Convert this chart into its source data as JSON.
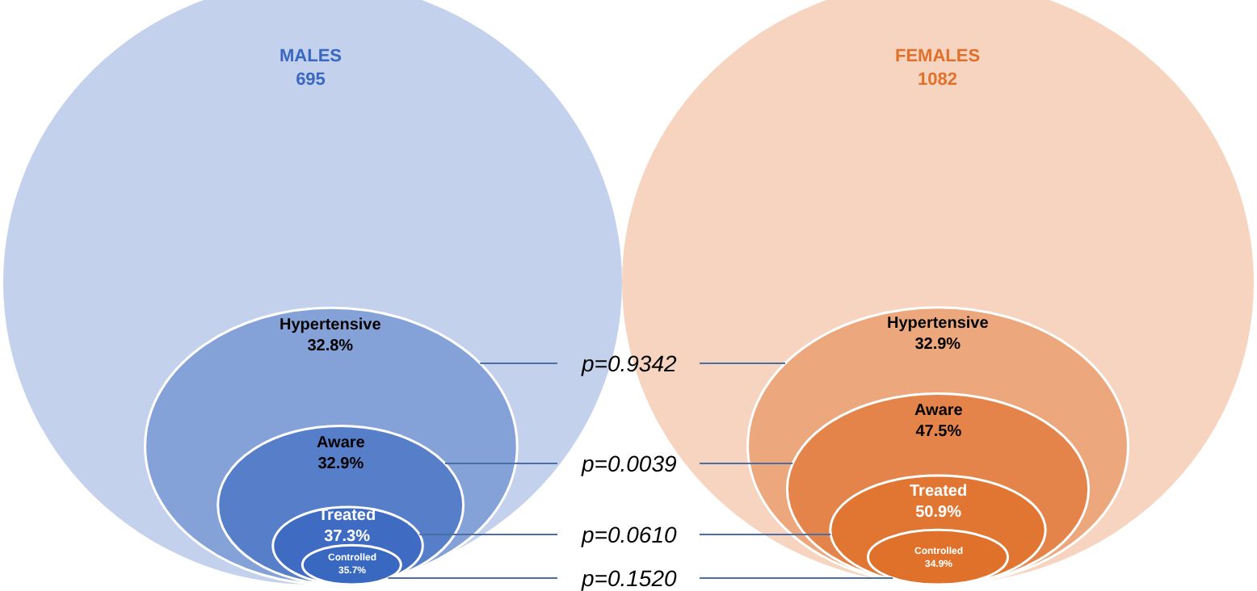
{
  "chart_data": {
    "type": "other",
    "categories": [
      "Hypertensive",
      "Aware",
      "Treated",
      "Controlled"
    ],
    "series": [
      {
        "name": "MALES",
        "color": "#3a68c0",
        "values": [
          32.8,
          32.9,
          37.3,
          35.7
        ],
        "value_labels": [
          "32.8%",
          "32.9%",
          "37.3%",
          "35.7%"
        ]
      },
      {
        "name": "FEMALES",
        "color": "#e0712c",
        "values": [
          32.9,
          47.5,
          50.9,
          34.9
        ],
        "value_labels": [
          "32.9%",
          "47.5%",
          "50.9%",
          "34.9%"
        ]
      }
    ],
    "totals": [
      "695",
      "1082"
    ],
    "annotations": [
      "p=0.9342",
      "p=0.0039",
      "p=0.0610",
      "p=0.1520"
    ]
  }
}
